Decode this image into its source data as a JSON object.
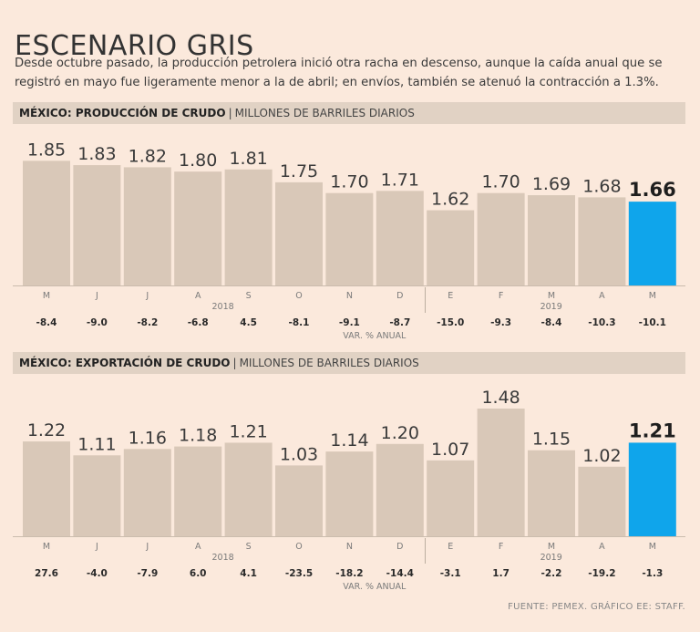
{
  "title": "ESCENARIO GRIS",
  "subtitle": "Desde octubre pasado, la producción petrolera inició otra racha en descenso, aunque la caída anual que se registró en mayo fue ligeramente menor a la de abril; en envíos, también se atenuó la contracción a 1.3%.",
  "source": "FUENTE: PEMEX. GRÁFICO EE: STAFF.",
  "colors": {
    "bar": "#d9c8b8",
    "highlight": "#0fa5eb",
    "background": "#fbe9dc",
    "header_band": "#e1d2c4"
  },
  "chart_data": [
    {
      "type": "bar",
      "title_bold": "MÉXICO: PRODUCCIÓN DE CRUDO",
      "separator": "|",
      "unit_label": "MILLONES DE BARRILES DIARIOS",
      "categories": [
        "M",
        "J",
        "J",
        "A",
        "S",
        "O",
        "N",
        "D",
        "E",
        "F",
        "M",
        "A",
        "M"
      ],
      "values": [
        1.85,
        1.83,
        1.82,
        1.8,
        1.81,
        1.75,
        1.7,
        1.71,
        1.62,
        1.7,
        1.69,
        1.68,
        1.66
      ],
      "value_labels": [
        "1.85",
        "1.83",
        "1.82",
        "1.80",
        "1.81",
        "1.75",
        "1.70",
        "1.71",
        "1.62",
        "1.70",
        "1.69",
        "1.68",
        "1.66"
      ],
      "highlight_index": 12,
      "year_labels": [
        "2018",
        "2019"
      ],
      "change_label": "VAR. % ANUAL",
      "changes": [
        "-8.4",
        "-9.0",
        "-8.2",
        "-6.8",
        "4.5",
        "-8.1",
        "-9.1",
        "-8.7",
        "-15.0",
        "-9.3",
        "-8.4",
        "-10.3",
        "-10.1"
      ],
      "ylim": [
        1.27,
        1.86
      ]
    },
    {
      "type": "bar",
      "title_bold": "MÉXICO: EXPORTACIÓN DE CRUDO",
      "separator": "|",
      "unit_label": "MILLONES DE BARRILES DIARIOS",
      "categories": [
        "M",
        "J",
        "J",
        "A",
        "S",
        "O",
        "N",
        "D",
        "E",
        "F",
        "M",
        "A",
        "M"
      ],
      "values": [
        1.22,
        1.11,
        1.16,
        1.18,
        1.21,
        1.03,
        1.14,
        1.2,
        1.07,
        1.48,
        1.15,
        1.02,
        1.21
      ],
      "value_labels": [
        "1.22",
        "1.11",
        "1.16",
        "1.18",
        "1.21",
        "1.03",
        "1.14",
        "1.20",
        "1.07",
        "1.48",
        "1.15",
        "1.02",
        "1.21"
      ],
      "highlight_index": 12,
      "year_labels": [
        "2018",
        "2019"
      ],
      "change_label": "VAR. % ANUAL",
      "changes": [
        "27.6",
        "-4.0",
        "-7.9",
        "6.0",
        "4.1",
        "-23.5",
        "-18.2",
        "-14.4",
        "-3.1",
        "1.7",
        "-2.2",
        "-19.2",
        "-1.3"
      ],
      "ylim": [
        0.47,
        1.48
      ]
    }
  ]
}
